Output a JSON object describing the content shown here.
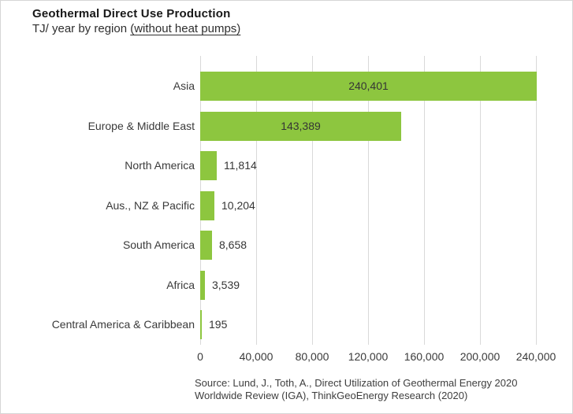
{
  "header": {
    "title": "Geothermal Direct Use Production",
    "subtitle_prefix": "TJ/ year by region ",
    "subtitle_underlined": "(without heat pumps)"
  },
  "chart_data": {
    "type": "bar",
    "orientation": "horizontal",
    "title": "Geothermal Direct Use Production",
    "subtitle": "TJ/ year by region (without heat pumps)",
    "unit": "TJ/year",
    "categories": [
      "Asia",
      "Europe & Middle East",
      "North America",
      "Aus., NZ & Pacific",
      "South America",
      "Africa",
      "Central America & Caribbean"
    ],
    "values": [
      240401,
      143389,
      11814,
      10204,
      8658,
      3539,
      195
    ],
    "value_labels": [
      "240,401",
      "143,389",
      "11,814",
      "10,204",
      "8,658",
      "3,539",
      "195"
    ],
    "xlabel": "",
    "ylabel": "",
    "xlim": [
      0,
      248000
    ],
    "x_ticks": [
      0,
      40000,
      80000,
      120000,
      160000,
      200000,
      240000
    ],
    "x_tick_labels": [
      "0",
      "40,000",
      "80,000",
      "120,000",
      "160,000",
      "200,000",
      "240,000"
    ],
    "grid": "vertical-only",
    "legend": "none",
    "bar_color": "#8dc63f",
    "gridline_color": "#d9d9d9"
  },
  "source": {
    "line1": "Source: Lund, J., Toth, A., Direct Utilization of Geothermal Energy 2020",
    "line2": "Worldwide Review (IGA), ThinkGeoEnergy Research (2020)"
  }
}
